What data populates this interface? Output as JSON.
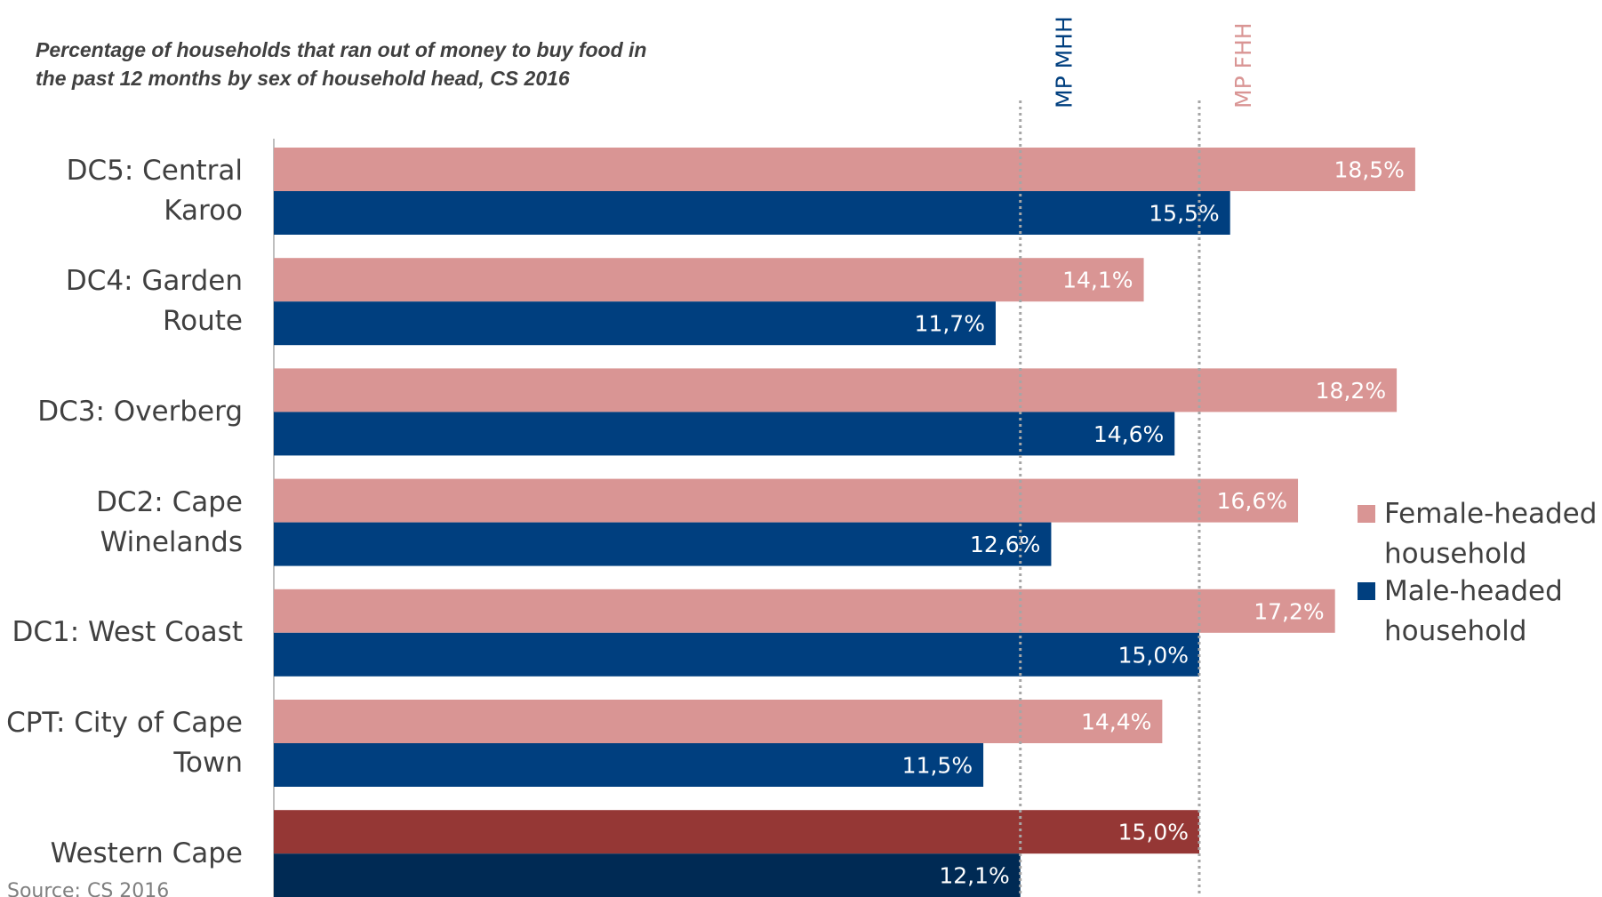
{
  "chart_data": {
    "type": "hbar",
    "title": "Percentage of households that ran out of money to buy food in\nthe past 12 months by sex of household head, CS 2016",
    "source": "Source: CS 2016",
    "categories": [
      "DC5: Central\nKaroo",
      "DC4: Garden\nRoute",
      "DC3: Overberg",
      "DC2: Cape\nWinelands",
      "DC1: West Coast",
      "CPT: City of Cape\nTown",
      "Western Cape"
    ],
    "series": [
      {
        "name": "Female-headed\nhousehold",
        "color": "#d99594",
        "colors": [
          "#d99594",
          "#d99594",
          "#d99594",
          "#d99594",
          "#d99594",
          "#d99594",
          "#953735"
        ],
        "values": [
          18.5,
          14.1,
          18.2,
          16.6,
          17.2,
          14.4,
          15.0
        ],
        "value_labels": [
          "18,5%",
          "14,1%",
          "18,2%",
          "16,6%",
          "17,2%",
          "14,4%",
          "15,0%"
        ]
      },
      {
        "name": "Male-headed\nhousehold",
        "color": "#003f7f",
        "colors": [
          "#003f7f",
          "#003f7f",
          "#003f7f",
          "#003f7f",
          "#003f7f",
          "#003f7f",
          "#002a54"
        ],
        "values": [
          15.5,
          11.7,
          14.6,
          12.6,
          15.0,
          11.5,
          12.1
        ],
        "value_labels": [
          "15,5%",
          "11,7%",
          "14,6%",
          "12,6%",
          "15,0%",
          "11,5%",
          "12,1%"
        ]
      }
    ],
    "reference_lines": [
      {
        "label": "MP MHH",
        "value": 12.1,
        "color": "#003f7f"
      },
      {
        "label": "MP FHH",
        "value": 15.0,
        "color": "#d99594"
      }
    ],
    "xlim": [
      0,
      20
    ],
    "legend": "right"
  }
}
